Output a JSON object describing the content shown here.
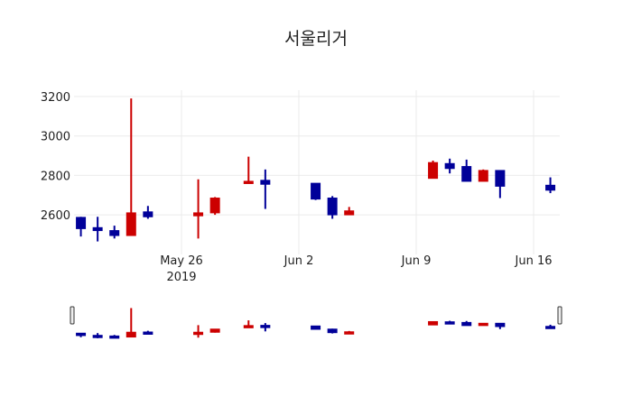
{
  "chart_data": {
    "type": "candlestick",
    "title": "서울리거",
    "xlabel": "",
    "ylabel": "",
    "ylim": [
      2420,
      3230
    ],
    "yticks": [
      2600,
      2800,
      3000,
      3200
    ],
    "xticks": [
      {
        "label": "May 26",
        "sublabel": "2019",
        "date": "2019-05-26"
      },
      {
        "label": "Jun 2",
        "date": "2019-06-02"
      },
      {
        "label": "Jun 9",
        "date": "2019-06-09"
      },
      {
        "label": "Jun 16",
        "date": "2019-06-16"
      }
    ],
    "increasing_color": "#cc0000",
    "decreasing_color": "#000099",
    "grid": true,
    "rangeslider": true,
    "candles": [
      {
        "date": "2019-05-20",
        "open": 2587,
        "high": 2590,
        "low": 2490,
        "close": 2530
      },
      {
        "date": "2019-05-21",
        "open": 2535,
        "high": 2590,
        "low": 2465,
        "close": 2520
      },
      {
        "date": "2019-05-22",
        "open": 2520,
        "high": 2545,
        "low": 2480,
        "close": 2495
      },
      {
        "date": "2019-05-23",
        "open": 2495,
        "high": 3190,
        "low": 2495,
        "close": 2610
      },
      {
        "date": "2019-05-24",
        "open": 2615,
        "high": 2645,
        "low": 2580,
        "close": 2590
      },
      {
        "date": "2019-05-27",
        "open": 2595,
        "high": 2780,
        "low": 2480,
        "close": 2610
      },
      {
        "date": "2019-05-28",
        "open": 2610,
        "high": 2690,
        "low": 2600,
        "close": 2685
      },
      {
        "date": "2019-05-30",
        "open": 2760,
        "high": 2895,
        "low": 2760,
        "close": 2770
      },
      {
        "date": "2019-05-31",
        "open": 2775,
        "high": 2830,
        "low": 2630,
        "close": 2755
      },
      {
        "date": "2019-06-03",
        "open": 2760,
        "high": 2760,
        "low": 2675,
        "close": 2680
      },
      {
        "date": "2019-06-04",
        "open": 2685,
        "high": 2695,
        "low": 2580,
        "close": 2600
      },
      {
        "date": "2019-06-05",
        "open": 2600,
        "high": 2640,
        "low": 2600,
        "close": 2620
      },
      {
        "date": "2019-06-10",
        "open": 2785,
        "high": 2875,
        "low": 2785,
        "close": 2865
      },
      {
        "date": "2019-06-11",
        "open": 2860,
        "high": 2885,
        "low": 2810,
        "close": 2835
      },
      {
        "date": "2019-06-12",
        "open": 2845,
        "high": 2880,
        "low": 2770,
        "close": 2770
      },
      {
        "date": "2019-06-13",
        "open": 2770,
        "high": 2830,
        "low": 2770,
        "close": 2825
      },
      {
        "date": "2019-06-14",
        "open": 2825,
        "high": 2825,
        "low": 2685,
        "close": 2745
      },
      {
        "date": "2019-06-17",
        "open": 2750,
        "high": 2790,
        "low": 2710,
        "close": 2725
      }
    ]
  }
}
